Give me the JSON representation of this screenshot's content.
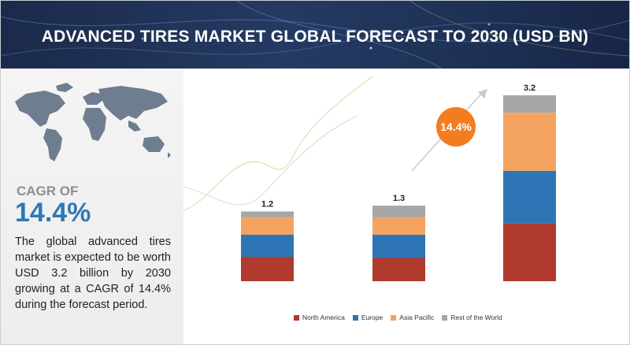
{
  "banner": {
    "title": "ADVANCED TIRES MARKET GLOBAL FORECAST TO 2030 (USD BN)"
  },
  "left_panel": {
    "cagr_label": "CAGR OF",
    "cagr_value": "14.4%",
    "summary": "The global advanced tires market is expected to be worth USD 3.2 billion by 2030 growing at a CAGR of 14.4% during the forecast period."
  },
  "chart_data": {
    "type": "bar",
    "stacked": true,
    "categories": [
      "",
      "",
      ""
    ],
    "totals": [
      "1.2",
      "1.3",
      "3.2"
    ],
    "series": [
      {
        "name": "North America",
        "color": "#b03a2e",
        "values": [
          0.42,
          0.4,
          1.0
        ]
      },
      {
        "name": "Europe",
        "color": "#2e75b6",
        "values": [
          0.38,
          0.4,
          0.9
        ]
      },
      {
        "name": "Asia Pacific",
        "color": "#f4a460",
        "values": [
          0.3,
          0.3,
          1.0
        ]
      },
      {
        "name": "Rest of the World",
        "color": "#a6a6a6",
        "values": [
          0.1,
          0.2,
          0.3
        ]
      }
    ],
    "annotation": "14.4%",
    "annotation_color": "#f47c20",
    "ylim": [
      0,
      3.2
    ]
  }
}
